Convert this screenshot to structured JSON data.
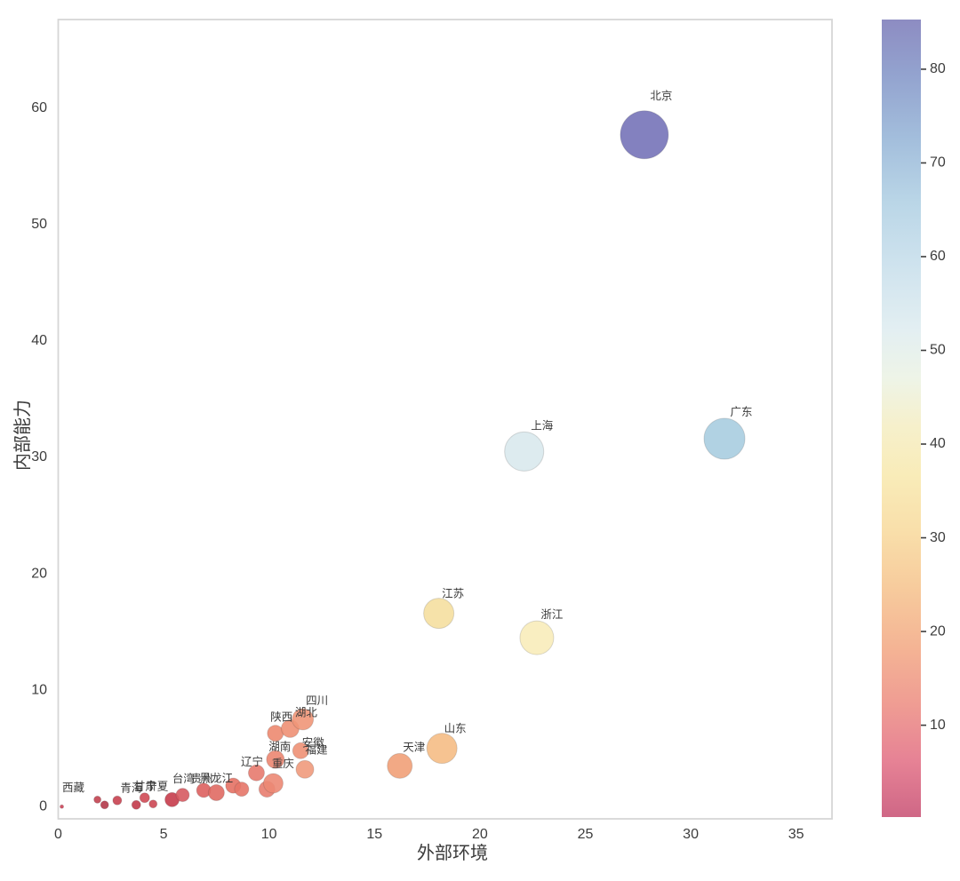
{
  "figure": {
    "background": "#ffffff",
    "spine_color": "#d6d6d6",
    "text_color": "#3d3d3d"
  },
  "chart_data": {
    "type": "scatter",
    "title": "",
    "xlabel": "外部环境",
    "ylabel": "内部能力",
    "xlim": [
      0,
      36.7
    ],
    "ylim": [
      -1.05,
      67.6
    ],
    "xticks": [
      0,
      5,
      10,
      15,
      20,
      25,
      30,
      35
    ],
    "yticks": [
      0,
      10,
      20,
      30,
      40,
      50,
      60
    ],
    "grid": false,
    "legend": "colorbar-right",
    "colorbar": {
      "ticks": [
        10,
        20,
        30,
        40,
        50,
        60,
        70,
        80
      ],
      "vmin": 0.2,
      "vmax": 85.3,
      "gradient_top_to_bottom": [
        {
          "offset": 0,
          "color": "#8d8cc2"
        },
        {
          "offset": 7,
          "color": "#93a3cf"
        },
        {
          "offset": 15,
          "color": "#a3bedc"
        },
        {
          "offset": 23,
          "color": "#bad6e7"
        },
        {
          "offset": 31,
          "color": "#cfe3ee"
        },
        {
          "offset": 39,
          "color": "#e3eff2"
        },
        {
          "offset": 45,
          "color": "#eef4e7"
        },
        {
          "offset": 51,
          "color": "#f6f0cb"
        },
        {
          "offset": 57,
          "color": "#f9ecb9"
        },
        {
          "offset": 64,
          "color": "#f9dfaa"
        },
        {
          "offset": 71,
          "color": "#f7cc9d"
        },
        {
          "offset": 79,
          "color": "#f4b394"
        },
        {
          "offset": 86,
          "color": "#ef9c93"
        },
        {
          "offset": 93,
          "color": "#e68295"
        },
        {
          "offset": 100,
          "color": "#cf6786"
        }
      ]
    },
    "points": [
      {
        "name": "西藏",
        "x": 0.17,
        "y": 0.0,
        "r": 2,
        "color": "#cd4458",
        "label_dx": 13,
        "label_gap": 15
      },
      {
        "name": "",
        "x": 1.86,
        "y": 0.6,
        "r": 4,
        "color": "#c24250"
      },
      {
        "name": "",
        "x": 2.2,
        "y": 0.15,
        "r": 4.5,
        "color": "#b23849"
      },
      {
        "name": "青海",
        "x": 2.8,
        "y": 0.53,
        "r": 5,
        "color": "#c84150",
        "label_dx": 16,
        "label_gap": 5
      },
      {
        "name": "甘肃",
        "x": 3.7,
        "y": 0.15,
        "r": 5,
        "color": "#c13a4a",
        "label_dx": 10,
        "label_gap": 12
      },
      {
        "name": "宁夏",
        "x": 4.1,
        "y": 0.76,
        "r": 5.5,
        "color": "#cf4954",
        "label_dx": 14,
        "label_gap": 3.5
      },
      {
        "name": "",
        "x": 4.5,
        "y": 0.23,
        "r": 4.5,
        "color": "#cc4753"
      },
      {
        "name": "",
        "x": 5.4,
        "y": 0.6,
        "r": 8,
        "color": "#c63c4b"
      },
      {
        "name": "台湾",
        "x": 5.9,
        "y": 1.0,
        "r": 7.5,
        "color": "#d65a60",
        "label_dx": 1,
        "label_gap": 6.5
      },
      {
        "name": "贵州",
        "x": 6.9,
        "y": 1.4,
        "r": 8,
        "color": "#dd615f",
        "label_dx": -2,
        "label_gap": 1
      },
      {
        "name": "黑龙江",
        "x": 7.5,
        "y": 1.2,
        "r": 9,
        "color": "#e06a63",
        "label_dx": 0,
        "label_gap": 3
      },
      {
        "name": "",
        "x": 8.3,
        "y": 1.8,
        "r": 8.5,
        "color": "#e47164"
      },
      {
        "name": "",
        "x": 8.7,
        "y": 1.5,
        "r": 8,
        "color": "#e67668"
      },
      {
        "name": "辽宁",
        "x": 9.4,
        "y": 2.9,
        "r": 9,
        "color": "#e77a6e",
        "label_dx": -5,
        "label_gap": -1
      },
      {
        "name": "",
        "x": 9.9,
        "y": 1.5,
        "r": 9,
        "color": "#e87d6f"
      },
      {
        "name": "重庆",
        "x": 10.2,
        "y": 2.0,
        "r": 11,
        "color": "#ec8874",
        "label_dx": 11,
        "label_gap": 7
      },
      {
        "name": "湖南",
        "x": 10.3,
        "y": 4.05,
        "r": 10,
        "color": "#ec8671",
        "label_dx": 5,
        "label_gap": 0
      },
      {
        "name": "陕西",
        "x": 10.3,
        "y": 6.3,
        "r": 9,
        "color": "#ed8a70",
        "label_dx": 7,
        "label_gap": 5
      },
      {
        "name": "湖北",
        "x": 11.0,
        "y": 6.7,
        "r": 10,
        "color": "#ee9074",
        "label_dx": 18,
        "label_gap": 4
      },
      {
        "name": "四川",
        "x": 11.6,
        "y": 7.5,
        "r": 12,
        "color": "#ef9678",
        "label_dx": 16,
        "label_gap": 5
      },
      {
        "name": "安徽",
        "x": 11.5,
        "y": 4.8,
        "r": 9,
        "color": "#ee9176",
        "label_dx": 14,
        "label_gap": -4
      },
      {
        "name": "福建",
        "x": 11.7,
        "y": 3.2,
        "r": 10,
        "color": "#f09a7c",
        "label_dx": 13,
        "label_gap": 8
      },
      {
        "name": "天津",
        "x": 16.2,
        "y": 3.5,
        "r": 14,
        "color": "#f1a078",
        "label_dx": 16,
        "label_gap": 3
      },
      {
        "name": "山东",
        "x": 18.2,
        "y": 5.0,
        "r": 17,
        "color": "#f5bc85",
        "label_dx": 15,
        "label_gap": 1
      },
      {
        "name": "江苏",
        "x": 18.05,
        "y": 16.6,
        "r": 17,
        "color": "#f5dfa0",
        "label_dx": 16,
        "label_gap": 1
      },
      {
        "name": "浙江",
        "x": 22.7,
        "y": 14.5,
        "r": 19,
        "color": "#f8ecba",
        "label_dx": 17,
        "label_gap": 3
      },
      {
        "name": "上海",
        "x": 22.1,
        "y": 30.5,
        "r": 22,
        "color": "#d9e9ed",
        "label_dx": 20,
        "label_gap": 3
      },
      {
        "name": "广东",
        "x": 31.6,
        "y": 31.6,
        "r": 23,
        "color": "#a8cde0",
        "label_dx": 19,
        "label_gap": 3
      },
      {
        "name": "北京",
        "x": 27.8,
        "y": 57.7,
        "r": 27,
        "color": "#7673b8",
        "label_dx": 19,
        "label_gap": 13
      }
    ]
  }
}
